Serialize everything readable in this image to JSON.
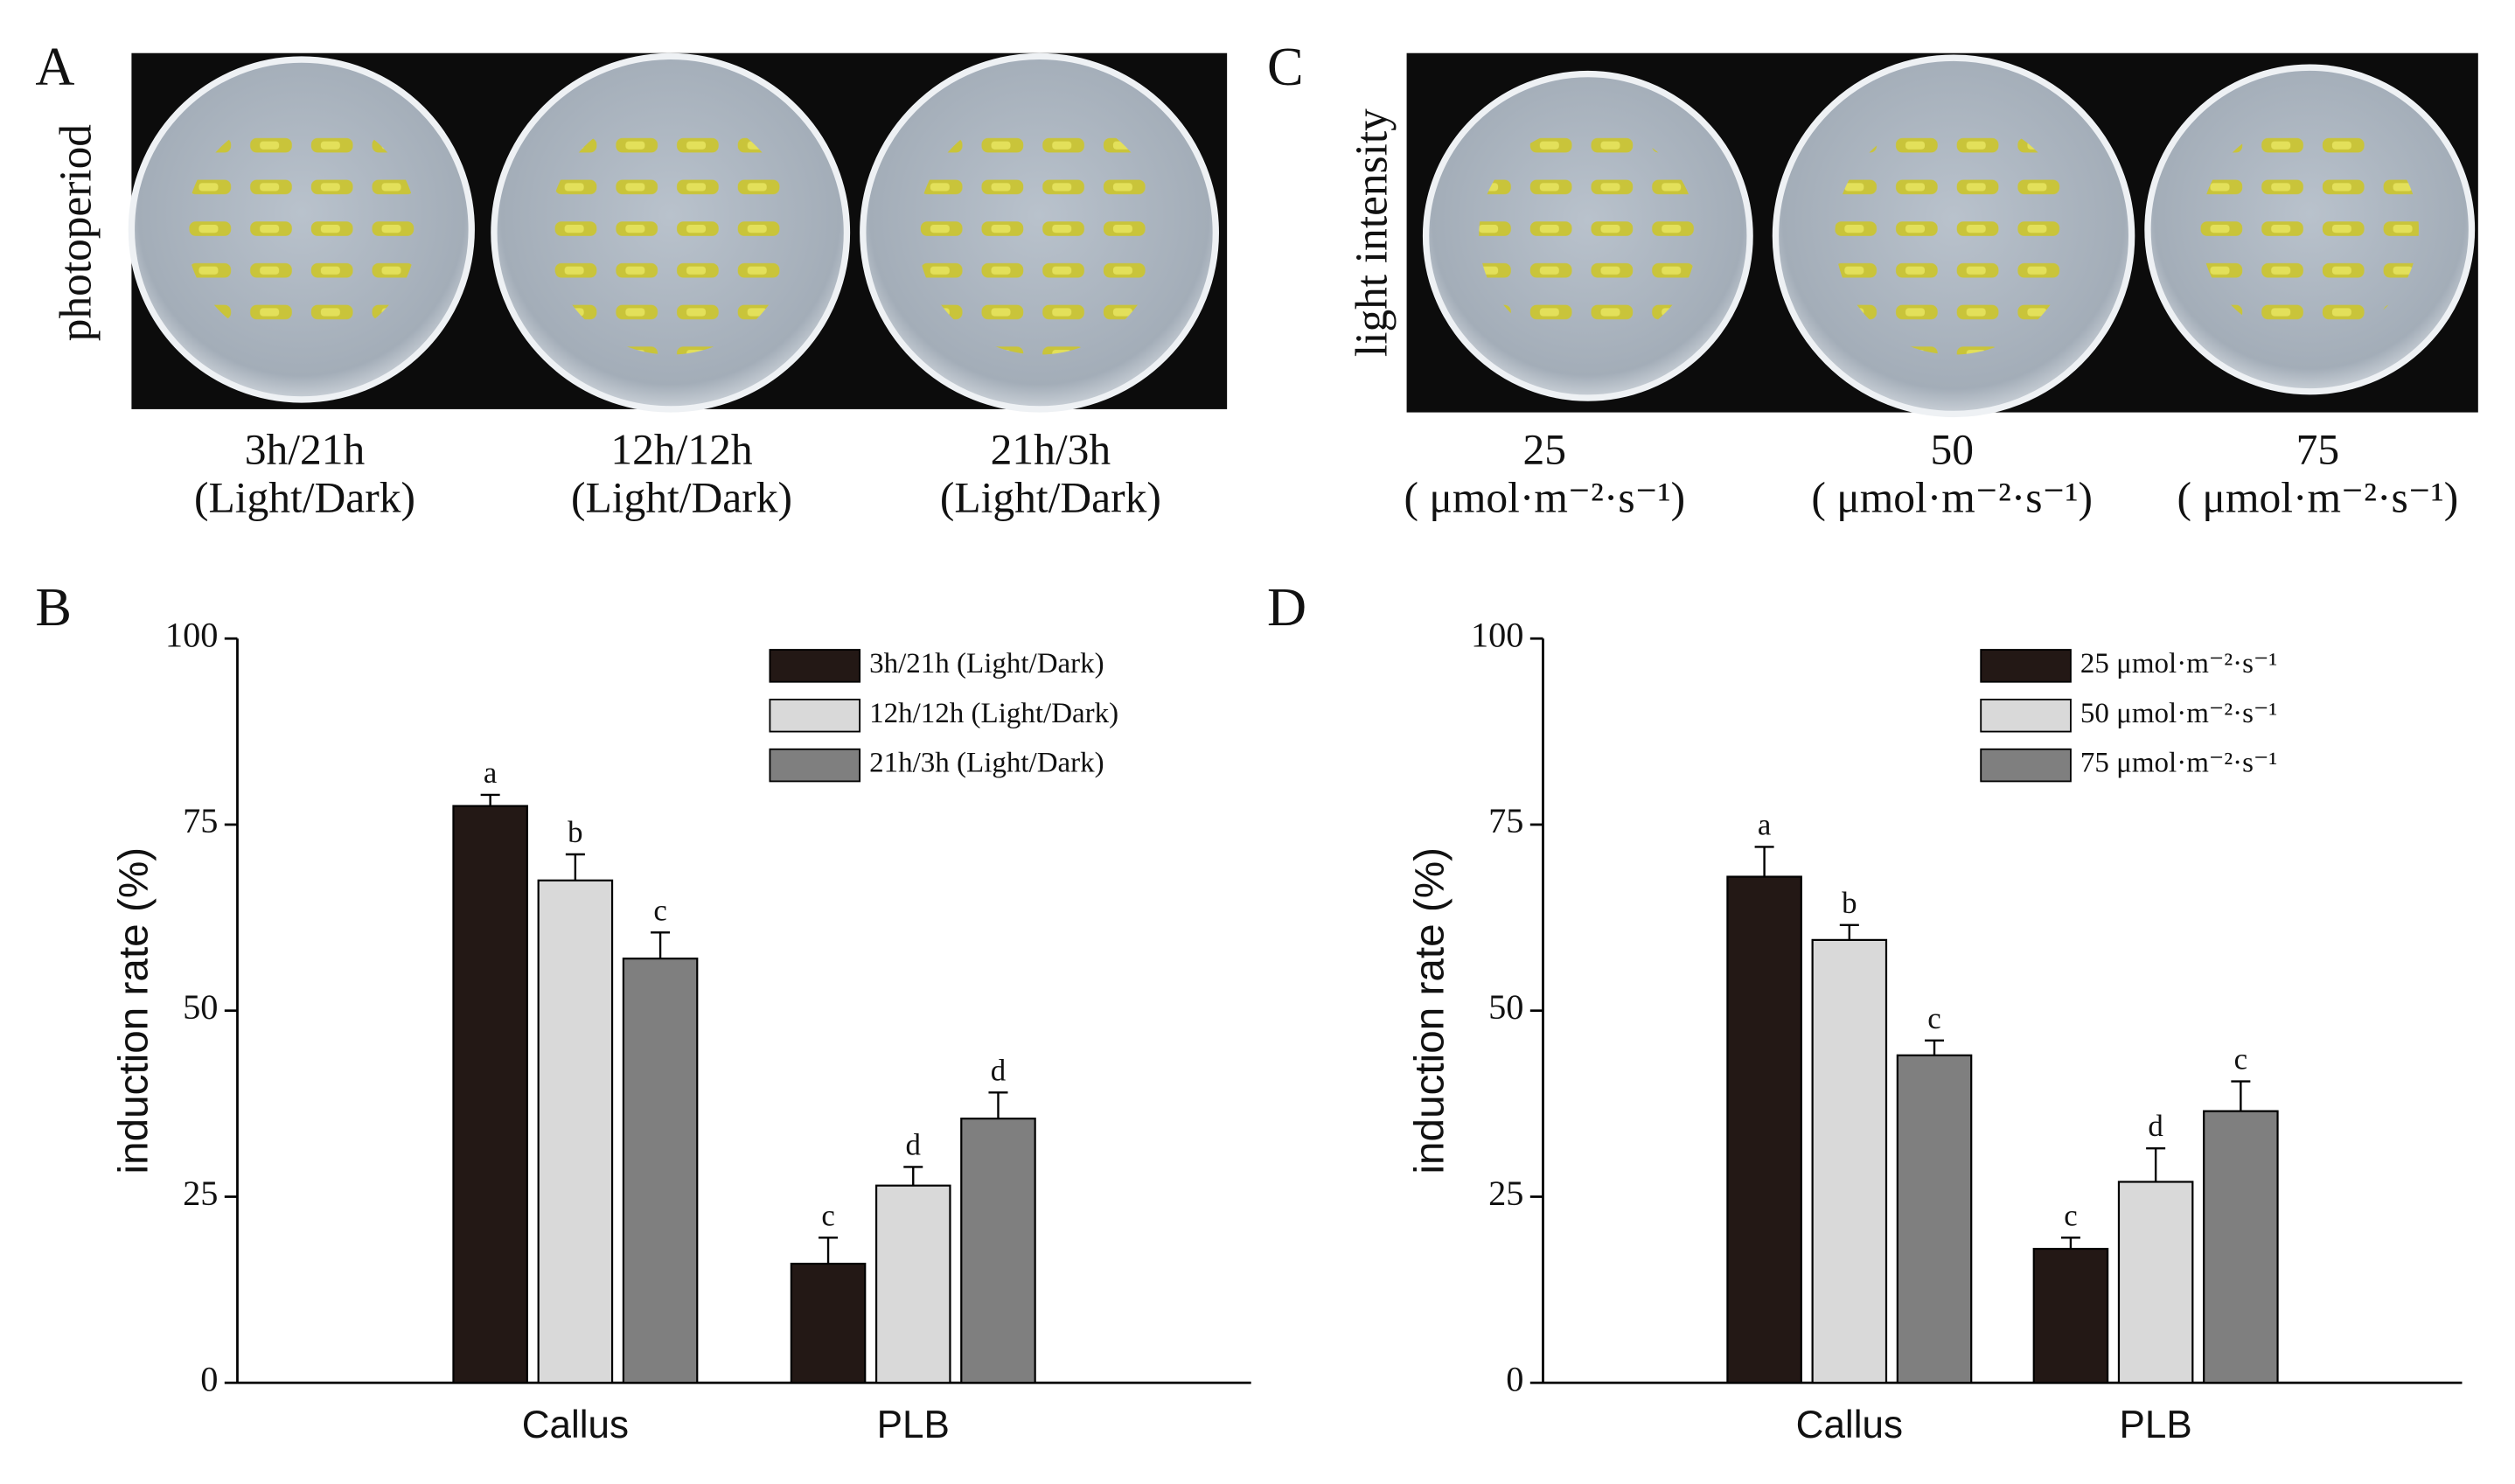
{
  "photo_panels": [
    {
      "label": "A",
      "axis_label": "photoperiod",
      "captions": [
        {
          "line1": "3h/21h",
          "line2": "(Light/Dark)"
        },
        {
          "line1": "12h/12h",
          "line2": "(Light/Dark)"
        },
        {
          "line1": "21h/3h",
          "line2": "(Light/Dark)"
        }
      ]
    },
    {
      "label": "C",
      "axis_label": "light intensity",
      "captions": [
        {
          "line1": "25",
          "line2": "( μmol·m⁻²·s⁻¹)"
        },
        {
          "line1": "50",
          "line2": "( μmol·m⁻²·s⁻¹)"
        },
        {
          "line1": "75",
          "line2": "( μmol·m⁻²·s⁻¹)"
        }
      ]
    }
  ],
  "chart_data": [
    {
      "type": "bar",
      "panel_label": "B",
      "ylabel": "induction rate (%)",
      "categories": [
        "Callus",
        "PLB"
      ],
      "ylim": [
        0,
        100
      ],
      "yticks": [
        0,
        25,
        50,
        75,
        100
      ],
      "legend": "upper right",
      "series": [
        {
          "name": "3h/21h (Light/Dark)",
          "color": "#231815",
          "values": [
            77.5,
            16
          ],
          "errors": [
            1.5,
            3.5
          ],
          "letters": [
            "a",
            "c"
          ]
        },
        {
          "name": "12h/12h (Light/Dark)",
          "color": "#d9d9d9",
          "values": [
            67.5,
            26.5
          ],
          "errors": [
            3.5,
            2.5
          ],
          "letters": [
            "b",
            "d"
          ]
        },
        {
          "name": "21h/3h (Light/Dark)",
          "color": "#7f7f7f",
          "values": [
            57,
            35.5
          ],
          "errors": [
            3.5,
            3.5
          ],
          "letters": [
            "c",
            "d"
          ]
        }
      ]
    },
    {
      "type": "bar",
      "panel_label": "D",
      "ylabel": "induction rate (%)",
      "categories": [
        "Callus",
        "PLB"
      ],
      "ylim": [
        0,
        100
      ],
      "yticks": [
        0,
        25,
        50,
        75,
        100
      ],
      "legend": "upper right",
      "series": [
        {
          "name": "25 μmol·m⁻²·s⁻¹",
          "color": "#231815",
          "values": [
            68,
            18
          ],
          "errors": [
            4,
            1.5
          ],
          "letters": [
            "a",
            "c"
          ]
        },
        {
          "name": "50 μmol·m⁻²·s⁻¹",
          "color": "#d9d9d9",
          "values": [
            59.5,
            27
          ],
          "errors": [
            2,
            4.5
          ],
          "letters": [
            "b",
            "d"
          ]
        },
        {
          "name": "75 μmol·m⁻²·s⁻¹",
          "color": "#7f7f7f",
          "values": [
            44,
            36.5
          ],
          "errors": [
            2,
            4
          ],
          "letters": [
            "c",
            "c"
          ]
        }
      ]
    }
  ]
}
